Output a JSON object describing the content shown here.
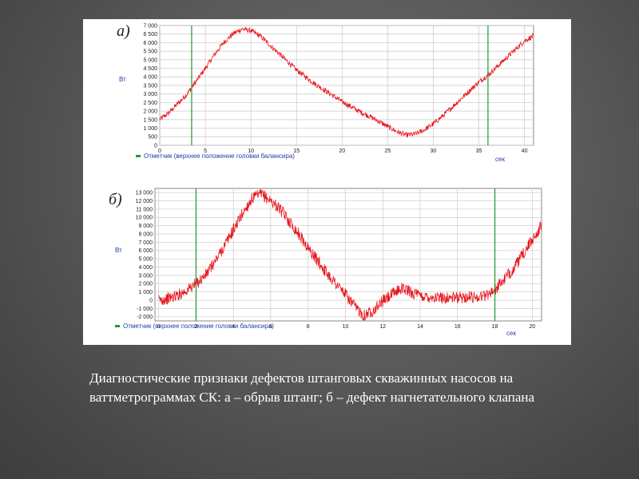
{
  "caption": "Диагностические признаки дефектов штанговых скважинных насосов на ваттметрограммах СК: а – обрыв штанг; б – дефект нагнетательного клапана",
  "colors": {
    "signal": "#e8141c",
    "marker": "#1f9a2a",
    "grid": "#c8c8c8",
    "unit_text": "#1f3ea8"
  },
  "chart_data": [
    {
      "type": "line",
      "panel_label": "а)",
      "ylabel": "Вт",
      "xlabel": "сек",
      "legend": "Отметчик (верхнее положение головки балансира)",
      "xlim": [
        0,
        41
      ],
      "ylim": [
        0,
        7000
      ],
      "x_ticks": [
        0,
        5,
        10,
        15,
        20,
        25,
        30,
        35,
        40
      ],
      "y_ticks": [
        0,
        500,
        1000,
        1500,
        2000,
        2500,
        3000,
        3500,
        4000,
        4500,
        5000,
        5500,
        6000,
        6500,
        7000
      ],
      "y_tick_labels": [
        "0",
        "500",
        "1 000",
        "1 500",
        "2 000",
        "2 500",
        "3 000",
        "3 500",
        "4 000",
        "4 500",
        "5 000",
        "5 500",
        "6 000",
        "6 500",
        "7 000"
      ],
      "markers_x": [
        3.5,
        36
      ],
      "grid": true,
      "series": [
        {
          "x": [
            0,
            1,
            2,
            3,
            4,
            5,
            6,
            7,
            8,
            9,
            10,
            11,
            12,
            13,
            14,
            15,
            16,
            17,
            18,
            19,
            20,
            21,
            22,
            23,
            24,
            25,
            26,
            27,
            28,
            29,
            30,
            31,
            32,
            33,
            34,
            35,
            36,
            37,
            38,
            39,
            40,
            41
          ],
          "values": [
            1500,
            1900,
            2450,
            3000,
            3750,
            4500,
            5300,
            6000,
            6500,
            6800,
            6700,
            6400,
            5900,
            5400,
            4900,
            4400,
            4000,
            3600,
            3250,
            2900,
            2550,
            2250,
            1950,
            1700,
            1400,
            1100,
            800,
            600,
            650,
            900,
            1250,
            1700,
            2200,
            2700,
            3200,
            3700,
            4100,
            4600,
            5100,
            5600,
            6100,
            6400
          ]
        }
      ]
    },
    {
      "type": "line",
      "panel_label": "б)",
      "ylabel": "Вт",
      "xlabel": "сек",
      "legend": "Отметчик (верхнее положение головки балансира)",
      "xlim": [
        -0.2,
        20.5
      ],
      "ylim": [
        -2500,
        13500
      ],
      "x_ticks": [
        0,
        2,
        4,
        6,
        8,
        10,
        12,
        14,
        16,
        18,
        20
      ],
      "y_ticks": [
        -2000,
        -1000,
        0,
        1000,
        2000,
        3000,
        4000,
        5000,
        6000,
        7000,
        8000,
        9000,
        10000,
        11000,
        12000,
        13000
      ],
      "y_tick_labels": [
        "-2 000",
        "-1 000",
        "0",
        "1 000",
        "2 000",
        "3 000",
        "4 000",
        "5 000",
        "6 000",
        "7 000",
        "8 000",
        "9 000",
        "10 000",
        "11 000",
        "12 000",
        "13 000"
      ],
      "markers_x": [
        2,
        18
      ],
      "grid": true,
      "series": [
        {
          "x": [
            0,
            0.5,
            1,
            1.5,
            2,
            2.5,
            3,
            3.5,
            4,
            4.5,
            5,
            5.5,
            6,
            6.5,
            7,
            7.5,
            8,
            8.5,
            9,
            9.5,
            10,
            10.5,
            11,
            11.5,
            12,
            12.5,
            13,
            13.5,
            14,
            14.5,
            15,
            15.5,
            16,
            16.5,
            17,
            17.5,
            18,
            18.5,
            19,
            19.5,
            20,
            20.5
          ],
          "values": [
            0,
            200,
            600,
            1200,
            2000,
            3000,
            4600,
            6500,
            8500,
            10500,
            12300,
            12800,
            12000,
            11000,
            9500,
            8000,
            6300,
            4800,
            3300,
            2000,
            700,
            -800,
            -1800,
            -1200,
            -100,
            700,
            1500,
            1000,
            500,
            400,
            300,
            300,
            300,
            400,
            400,
            600,
            1300,
            2500,
            3800,
            5500,
            7300,
            9000
          ]
        }
      ]
    }
  ]
}
